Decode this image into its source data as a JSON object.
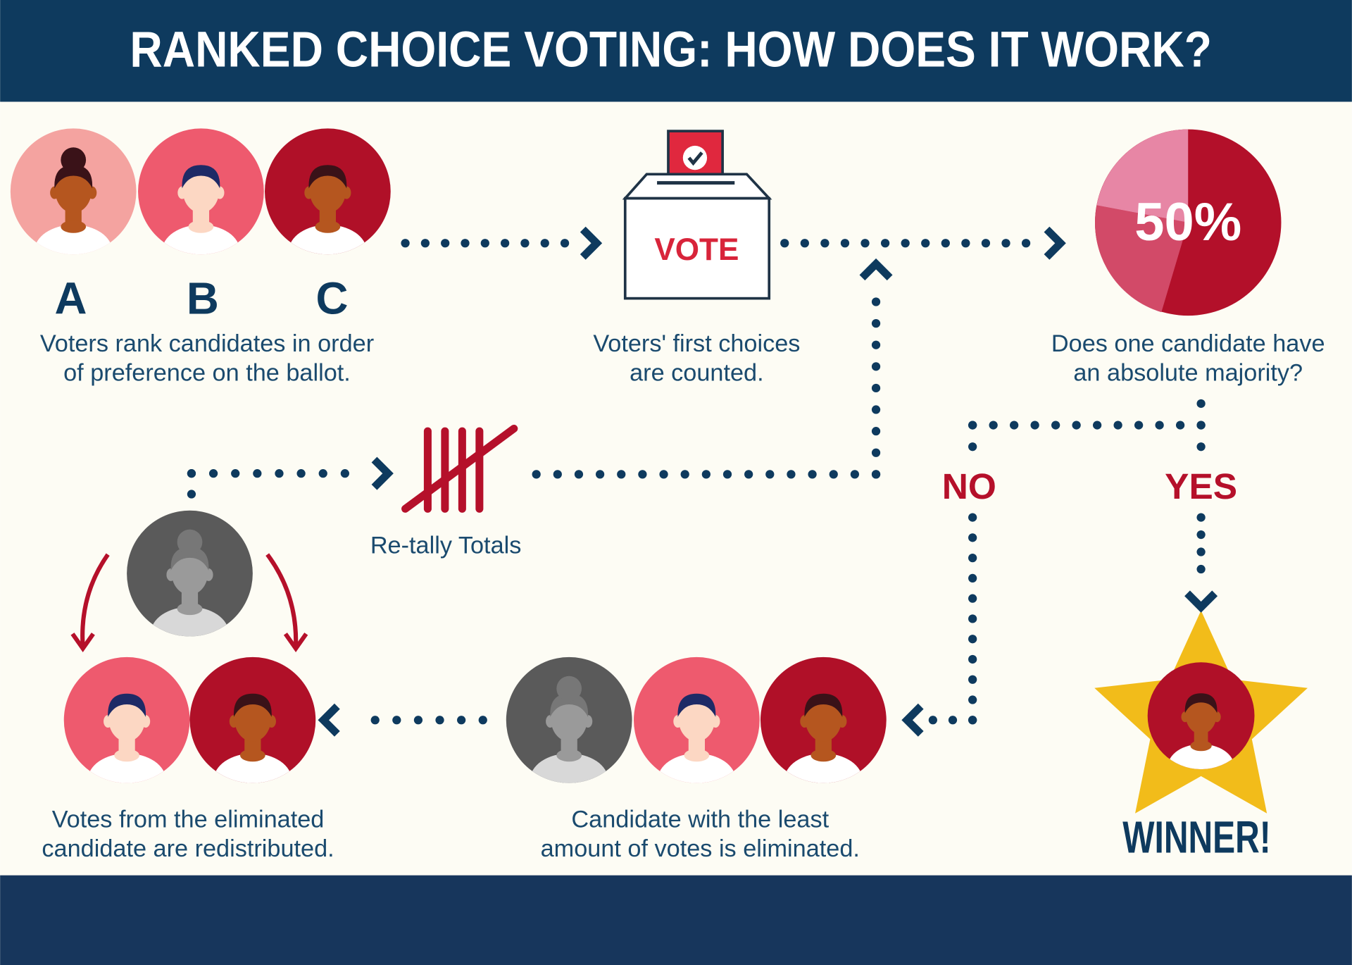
{
  "header": {
    "title": "RANKED CHOICE VOTING: HOW DOES IT WORK?"
  },
  "steps": {
    "rank": {
      "candidates": [
        "A",
        "B",
        "C"
      ],
      "text": [
        "Voters rank candidates in order",
        "of preference on the ballot."
      ]
    },
    "count": {
      "ballot_label": "VOTE",
      "text": [
        "Voters' first choices",
        "are counted."
      ]
    },
    "majority": {
      "pie_label": "50%",
      "text": [
        "Does one candidate have",
        "an absolute majority?"
      ],
      "no": "NO",
      "yes": "YES"
    },
    "winner": {
      "label": "WINNER!"
    },
    "eliminate": {
      "text": [
        "Candidate with the least",
        "amount of votes is eliminated."
      ]
    },
    "redistribute": {
      "text": [
        "Votes from the eliminated",
        "candidate are redistributed."
      ]
    },
    "retally": {
      "label": "Re-tally Totals"
    }
  }
}
